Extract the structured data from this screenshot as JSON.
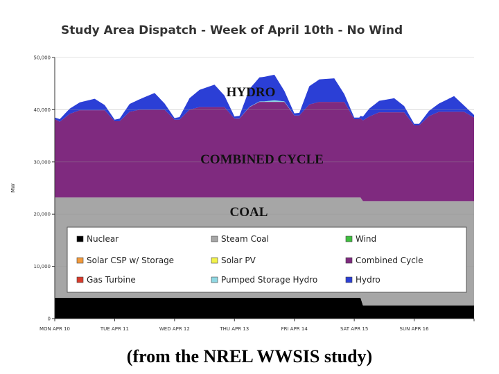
{
  "chart_data": {
    "type": "area",
    "title": "Study Area Dispatch - Week of April 10th - No Wind",
    "ylabel": "MW",
    "ylim": [
      0,
      50000
    ],
    "yticks": [
      0,
      10000,
      20000,
      30000,
      40000,
      50000
    ],
    "ytick_labels": [
      "0",
      "10,000",
      "20,000",
      "30,000",
      "40,000",
      "50,000"
    ],
    "x_range_hours": [
      0,
      168
    ],
    "xtick_labels": [
      "MON APR 10",
      "TUE APR 11",
      "WED APR 12",
      "THU APR 13",
      "FRI APR 14",
      "SAT APR 15",
      "SUN APR 16"
    ],
    "stack_order": [
      "Nuclear",
      "Steam Coal",
      "Combined Cycle",
      "Pumped Storage Hydro",
      "Hydro"
    ],
    "series": [
      {
        "name": "Nuclear",
        "color": "#000000",
        "x": [
          0,
          122.5,
          123.5,
          168
        ],
        "values": [
          4000,
          4000,
          2500,
          2500
        ]
      },
      {
        "name": "Steam Coal",
        "color": "#a6a6a6",
        "x": [
          0,
          122.5,
          123.5,
          168
        ],
        "values": [
          19200,
          19200,
          20000,
          20000
        ]
      },
      {
        "name": "Combined Cycle",
        "color": "#7f2a7f",
        "x": [
          0,
          2,
          6,
          10,
          20,
          24,
          26,
          30,
          34,
          44,
          48,
          50,
          54,
          58,
          68,
          72,
          74,
          78,
          82,
          92,
          96,
          98,
          102,
          106,
          116,
          120,
          122,
          126,
          130,
          140,
          144,
          146,
          150,
          154,
          164,
          168
        ],
        "values": [
          15000,
          14500,
          16000,
          16700,
          16700,
          14600,
          14600,
          16400,
          16800,
          16800,
          14900,
          14900,
          16800,
          17300,
          17300,
          15100,
          15100,
          17300,
          18300,
          18300,
          15700,
          15700,
          17800,
          18300,
          18300,
          15000,
          15000,
          16200,
          17000,
          17000,
          14500,
          14500,
          16300,
          17100,
          17100,
          16000
        ]
      },
      {
        "name": "Pumped Storage Hydro",
        "color": "#8fd8e3",
        "x": [
          0,
          24,
          48,
          72,
          84,
          88,
          92,
          96,
          120,
          168
        ],
        "values": [
          0,
          0,
          0,
          0,
          100,
          300,
          100,
          0,
          0,
          0
        ]
      },
      {
        "name": "Hydro",
        "color": "#2b3fd6",
        "x": [
          0,
          2,
          6,
          10,
          16,
          20,
          24,
          26,
          30,
          34,
          40,
          44,
          48,
          50,
          54,
          58,
          64,
          68,
          72,
          74,
          78,
          82,
          88,
          92,
          96,
          98,
          102,
          106,
          112,
          116,
          120,
          122,
          126,
          130,
          136,
          140,
          144,
          146,
          150,
          154,
          160,
          164,
          168
        ],
        "values": [
          300,
          500,
          1000,
          1500,
          2200,
          1000,
          300,
          500,
          1500,
          2000,
          3200,
          1200,
          300,
          500,
          2200,
          3300,
          4300,
          2200,
          400,
          500,
          3400,
          4600,
          4900,
          2000,
          400,
          500,
          3500,
          4300,
          4500,
          1500,
          300,
          300,
          1500,
          2200,
          2700,
          1200,
          300,
          300,
          1000,
          1600,
          3000,
          1200,
          500
        ]
      }
    ],
    "band_labels": [
      "HYDRO",
      "COMBINED CYCLE",
      "COAL"
    ],
    "legend": [
      {
        "name": "Nuclear",
        "color": "#000000"
      },
      {
        "name": "Steam Coal",
        "color": "#a6a6a6"
      },
      {
        "name": "Wind",
        "color": "#3fbf3f"
      },
      {
        "name": "Solar CSP w/ Storage",
        "color": "#f39a3c"
      },
      {
        "name": "Solar PV",
        "color": "#f2f24a"
      },
      {
        "name": "Combined Cycle",
        "color": "#7f2a7f"
      },
      {
        "name": "Gas Turbine",
        "color": "#d93b2b"
      },
      {
        "name": "Pumped Storage Hydro",
        "color": "#8fd8e3"
      },
      {
        "name": "Hydro",
        "color": "#2b3fd6"
      }
    ],
    "legend_position": "inside-bottom"
  },
  "caption": "(from the NREL WWSIS study)"
}
